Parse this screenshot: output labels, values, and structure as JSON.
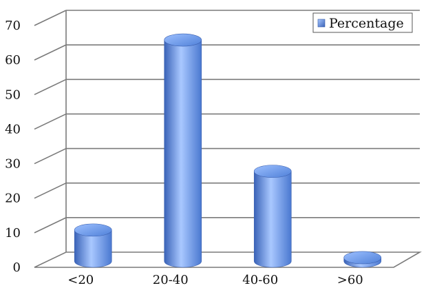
{
  "chart_data": {
    "type": "bar",
    "style": "3d-cylinder",
    "categories": [
      "<20",
      "20-40",
      "40-60",
      ">60"
    ],
    "series": [
      {
        "name": "Percentage",
        "values": [
          9,
          64,
          26,
          1
        ]
      }
    ],
    "yticks": [
      0,
      10,
      20,
      30,
      40,
      50,
      60,
      70
    ],
    "ylim": [
      0,
      70
    ],
    "grid": true,
    "legend": "top-right",
    "colors": {
      "bar_light": "#a9c8ff",
      "bar_mid": "#5e8fe0",
      "bar_dark": "#3a63b8",
      "grid": "#7a7a7a",
      "axis_text": "#111111"
    }
  }
}
